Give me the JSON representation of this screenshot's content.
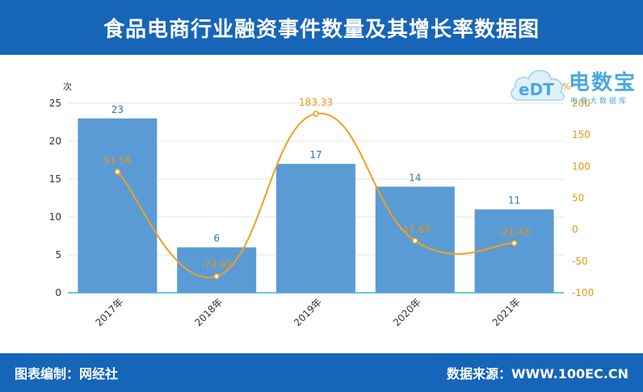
{
  "header": {
    "title": "食品电商行业融资事件数量及其增长率数据图"
  },
  "logo": {
    "brand": "电数宝",
    "sub": "电商大数据库",
    "cloud_text": "eDT"
  },
  "footer": {
    "left": "图表编制：网经社",
    "right": "数据来源：WWW.100EC.CN"
  },
  "colors": {
    "bar": "#5b9bd5",
    "line": "#f0a01e",
    "header_bg": "#1665b8",
    "bar_label": "#2e75b6",
    "line_label": "#e8960f"
  },
  "chart_data": {
    "type": "bar",
    "categories": [
      "2017年",
      "2018年",
      "2019年",
      "2020年",
      "2021年"
    ],
    "series": [
      {
        "type": "bar",
        "axis": "left",
        "values": [
          23,
          6,
          17,
          14,
          11
        ],
        "labels": [
          "23",
          "6",
          "17",
          "14",
          "11"
        ]
      },
      {
        "type": "line",
        "smooth": true,
        "axis": "right",
        "values": [
          91.56,
          -73.92,
          183.33,
          -17.65,
          -21.43
        ],
        "labels": [
          "91.56",
          "-73.92",
          "183.33",
          "-17.65",
          "-21.43"
        ]
      }
    ],
    "ylabel": "次",
    "y2label": "%",
    "ylim": [
      0,
      25
    ],
    "y2lim": [
      -100,
      200
    ],
    "yticks": [
      "0",
      "5",
      "10",
      "15",
      "20",
      "25"
    ],
    "y2ticks": [
      "-100",
      "-50",
      "0",
      "50",
      "100",
      "150",
      "200"
    ],
    "grid": true,
    "legend": "none"
  }
}
